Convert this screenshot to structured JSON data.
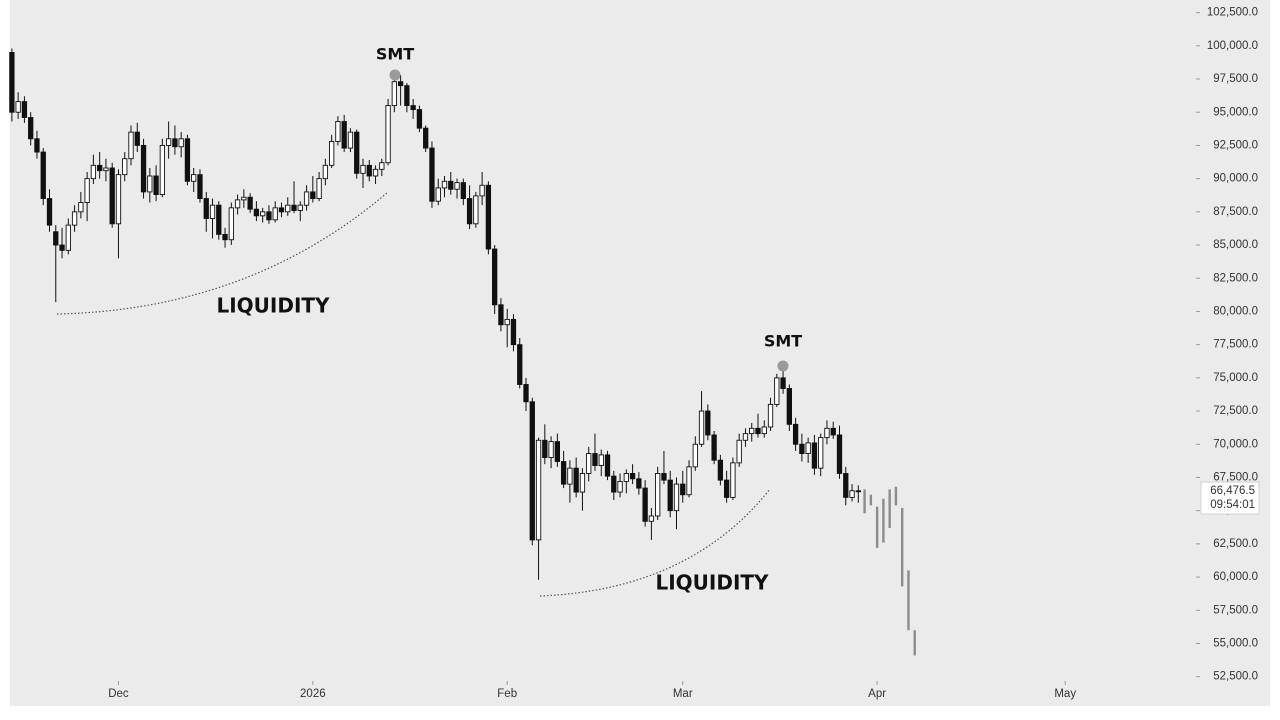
{
  "chart_data": {
    "type": "candlestick",
    "ylim": [
      52250,
      103450
    ],
    "xlim": [
      -0.3,
      188.7
    ],
    "yticks": [
      {
        "value": 52500,
        "label": "52,500.0"
      },
      {
        "value": 55000,
        "label": "55,000.0"
      },
      {
        "value": 57500,
        "label": "57,500.0"
      },
      {
        "value": 60000,
        "label": "60,000.0"
      },
      {
        "value": 62500,
        "label": "62,500.0"
      },
      {
        "value": 65000,
        "label": "65,000.0"
      },
      {
        "value": 67500,
        "label": "67,500.0"
      },
      {
        "value": 70000,
        "label": "70,000.0"
      },
      {
        "value": 72500,
        "label": "72,500.0"
      },
      {
        "value": 75000,
        "label": "75,000.0"
      },
      {
        "value": 77500,
        "label": "77,500.0"
      },
      {
        "value": 80000,
        "label": "80,000.0"
      },
      {
        "value": 82500,
        "label": "82,500.0"
      },
      {
        "value": 85000,
        "label": "85,000.0"
      },
      {
        "value": 87500,
        "label": "87,500.0"
      },
      {
        "value": 90000,
        "label": "90,000.0"
      },
      {
        "value": 92500,
        "label": "92,500.0"
      },
      {
        "value": 95000,
        "label": "95,000.0"
      },
      {
        "value": 97500,
        "label": "97,500.0"
      },
      {
        "value": 100000,
        "label": "100,000.0"
      },
      {
        "value": 102500,
        "label": "102,500.0"
      }
    ],
    "xticks": [
      {
        "value": 17,
        "label": "Dec"
      },
      {
        "value": 48,
        "label": "2026"
      },
      {
        "value": 79,
        "label": "Feb"
      },
      {
        "value": 107,
        "label": "Mar"
      },
      {
        "value": 138,
        "label": "Apr"
      },
      {
        "value": 168,
        "label": "May"
      }
    ],
    "candles": [
      [
        99500,
        99800,
        94300,
        95000
      ],
      [
        95000,
        96500,
        94500,
        95800
      ],
      [
        95800,
        96200,
        94200,
        94600
      ],
      [
        94600,
        95000,
        92500,
        93000
      ],
      [
        93000,
        93600,
        91500,
        92000
      ],
      [
        92000,
        92300,
        88000,
        88500
      ],
      [
        88500,
        89200,
        86000,
        86500
      ],
      [
        86000,
        86500,
        80700,
        85000
      ],
      [
        85000,
        86300,
        84000,
        84600
      ],
      [
        84600,
        87000,
        84300,
        86500
      ],
      [
        86500,
        88000,
        86000,
        87500
      ],
      [
        87500,
        89000,
        87000,
        88200
      ],
      [
        88200,
        90500,
        86800,
        90000
      ],
      [
        90000,
        91800,
        89600,
        91000
      ],
      [
        91000,
        92000,
        90000,
        90600
      ],
      [
        90600,
        91500,
        89800,
        90800
      ],
      [
        90800,
        91200,
        86300,
        86600
      ],
      [
        86600,
        90700,
        84000,
        90300
      ],
      [
        90300,
        92000,
        89800,
        91500
      ],
      [
        91500,
        94000,
        91000,
        93500
      ],
      [
        93500,
        94200,
        92000,
        92500
      ],
      [
        92500,
        93000,
        88500,
        89000
      ],
      [
        89000,
        90800,
        88200,
        90200
      ],
      [
        90200,
        91000,
        88300,
        88800
      ],
      [
        88800,
        93000,
        88600,
        92500
      ],
      [
        92500,
        94300,
        91500,
        93000
      ],
      [
        93000,
        94000,
        91800,
        92400
      ],
      [
        92400,
        93500,
        91600,
        93000
      ],
      [
        93000,
        93300,
        89500,
        89800
      ],
      [
        89800,
        90800,
        89000,
        90300
      ],
      [
        90300,
        90700,
        88200,
        88500
      ],
      [
        88500,
        89000,
        86000,
        87000
      ],
      [
        87000,
        88500,
        85500,
        88000
      ],
      [
        88000,
        88300,
        85400,
        85800
      ],
      [
        85800,
        86300,
        84800,
        85400
      ],
      [
        85400,
        88200,
        85000,
        87800
      ],
      [
        87800,
        88800,
        87300,
        88400
      ],
      [
        88400,
        89200,
        87800,
        88600
      ],
      [
        88600,
        88900,
        87400,
        87700
      ],
      [
        87700,
        88300,
        86800,
        87200
      ],
      [
        87200,
        87800,
        86700,
        87500
      ],
      [
        87500,
        88000,
        86600,
        86900
      ],
      [
        86900,
        88300,
        86700,
        87800
      ],
      [
        87800,
        88200,
        87100,
        87500
      ],
      [
        87500,
        88600,
        87200,
        88000
      ],
      [
        88000,
        89800,
        87400,
        87600
      ],
      [
        87600,
        88300,
        86800,
        88000
      ],
      [
        88000,
        89500,
        87600,
        89000
      ],
      [
        89000,
        90200,
        88200,
        88500
      ],
      [
        88500,
        90500,
        88300,
        90000
      ],
      [
        90000,
        91500,
        89500,
        91000
      ],
      [
        91000,
        93300,
        90800,
        92800
      ],
      [
        92800,
        94700,
        92500,
        94300
      ],
      [
        94300,
        94800,
        92000,
        92300
      ],
      [
        92300,
        93800,
        92000,
        93500
      ],
      [
        93500,
        93700,
        90000,
        90400
      ],
      [
        90400,
        91500,
        89300,
        91000
      ],
      [
        91000,
        91400,
        89800,
        90200
      ],
      [
        90200,
        91000,
        89600,
        90700
      ],
      [
        90700,
        91500,
        90200,
        91200
      ],
      [
        91200,
        96000,
        91000,
        95500
      ],
      [
        95500,
        97800,
        95000,
        97300
      ],
      [
        97300,
        97800,
        95500,
        97000
      ],
      [
        97000,
        97200,
        95000,
        95500
      ],
      [
        95500,
        96000,
        94500,
        95200
      ],
      [
        95200,
        95500,
        93500,
        93800
      ],
      [
        93800,
        94000,
        92000,
        92300
      ],
      [
        92300,
        92800,
        87800,
        88300
      ],
      [
        88300,
        90000,
        88000,
        89300
      ],
      [
        89300,
        90200,
        88600,
        89800
      ],
      [
        89800,
        90500,
        88800,
        89200
      ],
      [
        89200,
        90000,
        88500,
        89700
      ],
      [
        89700,
        90000,
        88000,
        88500
      ],
      [
        88500,
        89500,
        86200,
        86600
      ],
      [
        86600,
        89000,
        86300,
        88700
      ],
      [
        88700,
        90500,
        88000,
        89500
      ],
      [
        89500,
        89800,
        84300,
        84700
      ],
      [
        84700,
        85000,
        79800,
        80500
      ],
      [
        80500,
        81000,
        78500,
        79000
      ],
      [
        79000,
        80200,
        77300,
        79400
      ],
      [
        79400,
        79800,
        77000,
        77500
      ],
      [
        77500,
        78000,
        74200,
        74500
      ],
      [
        74500,
        75000,
        72500,
        73200
      ],
      [
        73200,
        73500,
        62400,
        62800
      ],
      [
        62800,
        70500,
        59800,
        70300
      ],
      [
        70300,
        71500,
        68500,
        69000
      ],
      [
        69000,
        70600,
        68200,
        70200
      ],
      [
        70200,
        70800,
        68300,
        68700
      ],
      [
        68700,
        69500,
        66700,
        67000
      ],
      [
        67000,
        68800,
        65600,
        68200
      ],
      [
        68200,
        69000,
        66000,
        66400
      ],
      [
        66400,
        68200,
        65000,
        67800
      ],
      [
        67800,
        69800,
        67200,
        69300
      ],
      [
        69300,
        70800,
        68000,
        68400
      ],
      [
        68400,
        69600,
        67600,
        69200
      ],
      [
        69200,
        69500,
        67300,
        67600
      ],
      [
        67600,
        68000,
        65800,
        66400
      ],
      [
        66400,
        67800,
        66000,
        67200
      ],
      [
        67200,
        68100,
        66300,
        67800
      ],
      [
        67800,
        68500,
        67000,
        67400
      ],
      [
        67400,
        67900,
        66200,
        66700
      ],
      [
        66700,
        67300,
        63800,
        64200
      ],
      [
        64200,
        65200,
        62800,
        64600
      ],
      [
        64600,
        68300,
        64300,
        67800
      ],
      [
        67800,
        69500,
        67000,
        67300
      ],
      [
        67300,
        68000,
        64500,
        65000
      ],
      [
        65000,
        67500,
        63600,
        67000
      ],
      [
        67000,
        68000,
        65600,
        66200
      ],
      [
        66200,
        68800,
        66000,
        68300
      ],
      [
        68300,
        70600,
        68000,
        70000
      ],
      [
        70000,
        74000,
        69800,
        72500
      ],
      [
        72500,
        73000,
        70300,
        70700
      ],
      [
        70700,
        71000,
        68500,
        68800
      ],
      [
        68800,
        69200,
        66900,
        67300
      ],
      [
        67300,
        68000,
        65600,
        66000
      ],
      [
        66000,
        69000,
        65800,
        68600
      ],
      [
        68600,
        70800,
        68300,
        70300
      ],
      [
        70300,
        71200,
        69800,
        70800
      ],
      [
        70800,
        71600,
        70200,
        71200
      ],
      [
        71200,
        72300,
        70500,
        70800
      ],
      [
        70800,
        71800,
        70500,
        71300
      ],
      [
        71300,
        73500,
        71000,
        73000
      ],
      [
        73000,
        75300,
        72800,
        75000
      ],
      [
        75000,
        76000,
        73800,
        74200
      ],
      [
        74200,
        74500,
        71000,
        71500
      ],
      [
        71500,
        72000,
        69500,
        70000
      ],
      [
        70000,
        70800,
        68700,
        69300
      ],
      [
        69300,
        70500,
        68600,
        70100
      ],
      [
        70100,
        70700,
        67700,
        68200
      ],
      [
        68200,
        70800,
        67600,
        70500
      ],
      [
        70500,
        71800,
        70000,
        71200
      ],
      [
        71200,
        71700,
        70400,
        70700
      ],
      [
        70700,
        71400,
        67400,
        67800
      ],
      [
        67800,
        68300,
        65400,
        66000
      ],
      [
        66000,
        67000,
        65700,
        66500
      ],
      [
        66500,
        66900,
        65600,
        66476.5
      ]
    ],
    "projection": [
      [
        66600,
        64800
      ],
      [
        66200,
        65400
      ],
      [
        65300,
        62200
      ],
      [
        65900,
        62600
      ],
      [
        66600,
        63700
      ],
      [
        66800,
        65400
      ],
      [
        65200,
        59300
      ],
      [
        60500,
        56000
      ],
      [
        56000,
        54100
      ]
    ],
    "price_tag": {
      "value": 66476.5,
      "label": "66,476.5",
      "timer": "09:54:01"
    },
    "annotations": {
      "smt_1": "SMT",
      "smt_2": "SMT",
      "liquidity_1": "LIQUIDITY",
      "liquidity_2": "LIQUIDITY"
    }
  }
}
